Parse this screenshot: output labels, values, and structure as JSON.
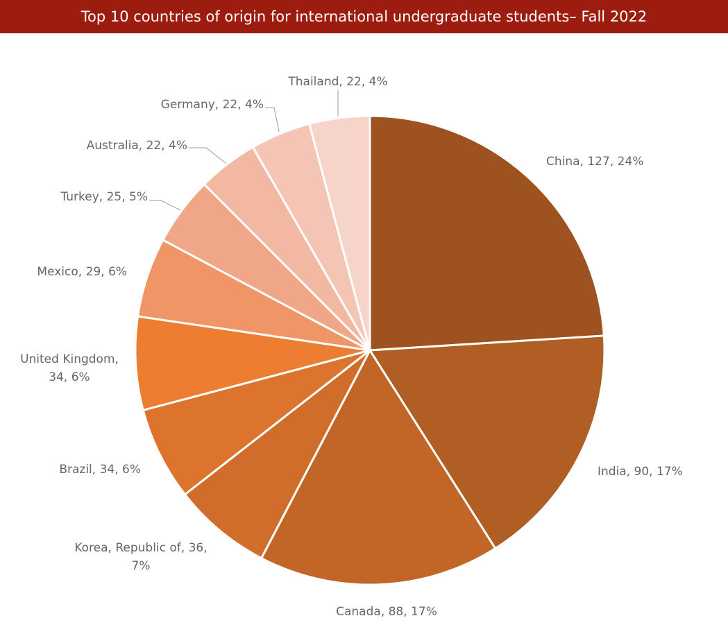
{
  "chart_data": {
    "type": "pie",
    "title": "Top 10 countries of origin for international undergraduate students– Fall 2022",
    "categories": [
      "China",
      "India",
      "Canada",
      "Korea, Republic of",
      "Brazil",
      "United Kingdom",
      "Mexico",
      "Turkey",
      "Australia",
      "Germany",
      "Thailand"
    ],
    "values": [
      127,
      90,
      88,
      36,
      34,
      34,
      29,
      25,
      22,
      22,
      22
    ],
    "value_labels": [
      "China, 127, 24%",
      "India, 90, 17%",
      "Canada, 88, 17%",
      "Korea, Republic of, 36, 7%",
      "Brazil, 34, 6%",
      "United Kingdom, 34, 6%",
      "Mexico, 29, 6%",
      "Turkey, 25, 5%",
      "Australia, 22, 4%",
      "Germany, 22, 4%",
      "Thailand, 22, 4%"
    ],
    "colors": [
      "#9e5220",
      "#b05e24",
      "#c26627",
      "#d16d2b",
      "#dd742e",
      "#ec7d31",
      "#ef9566",
      "#f0a787",
      "#f2b8a2",
      "#f4c5b5",
      "#f6d4c9"
    ]
  }
}
